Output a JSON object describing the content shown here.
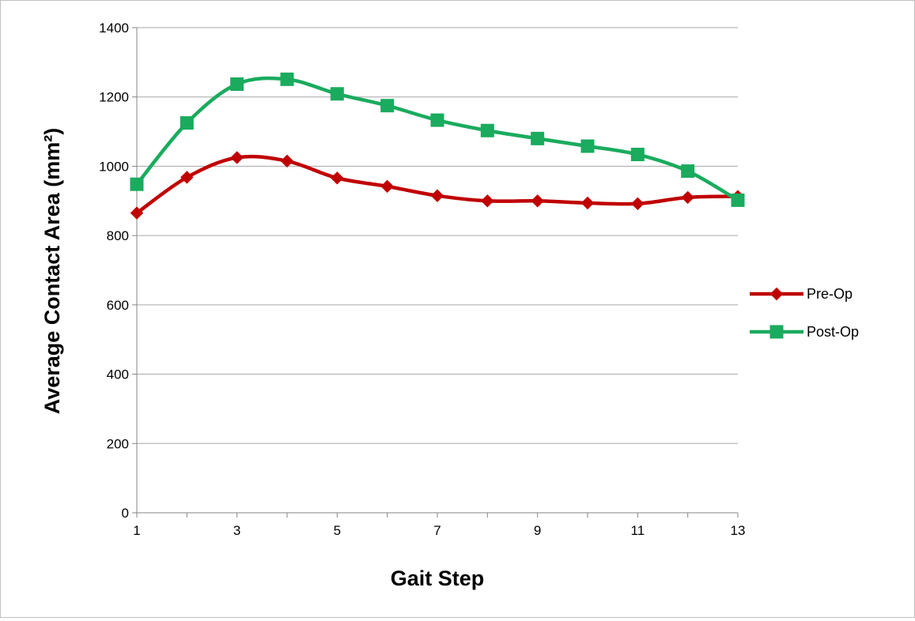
{
  "chart_data": {
    "type": "line",
    "title": "",
    "xlabel": "Gait Step",
    "ylabel": "Average Contact Area (mm²)",
    "xlim": [
      1,
      13
    ],
    "ylim": [
      0,
      1400
    ],
    "x_ticks": [
      "1",
      "3",
      "5",
      "7",
      "9",
      "11",
      "13"
    ],
    "y_ticks": [
      "0",
      "200",
      "400",
      "600",
      "800",
      "1000",
      "1200",
      "1400"
    ],
    "grid": true,
    "legend_position": "right",
    "smooth": true,
    "x": [
      1,
      2,
      3,
      4,
      5,
      6,
      7,
      8,
      9,
      10,
      11,
      12,
      13
    ],
    "series": [
      {
        "name": "Pre-Op",
        "color": "#c00000",
        "marker": "diamond",
        "values": [
          865,
          968,
          1025,
          1015,
          966,
          942,
          915,
          900,
          900,
          894,
          892,
          910,
          913
        ]
      },
      {
        "name": "Post-Op",
        "color": "#1aab5e",
        "marker": "square",
        "values": [
          948,
          1125,
          1237,
          1251,
          1209,
          1175,
          1133,
          1103,
          1080,
          1058,
          1034,
          986,
          902
        ]
      }
    ]
  }
}
